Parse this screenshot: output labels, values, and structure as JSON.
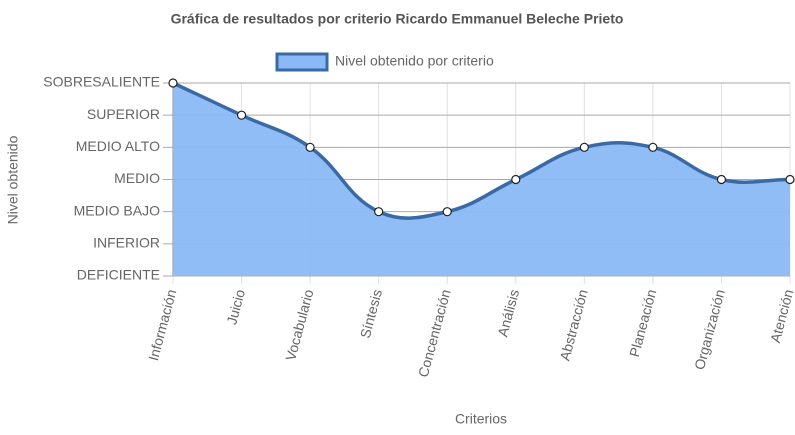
{
  "chart_data": {
    "type": "line",
    "title": "Gráfica de resultados por criterio Ricardo Emmanuel Beleche Prieto",
    "x_label": "Criterios",
    "y_label": "Nivel obtenido",
    "categories": [
      "Información",
      "Juicio",
      "Vocabulario",
      "Síntesis",
      "Concentración",
      "Análisis",
      "Abstracción",
      "Planeación",
      "Organización",
      "Atención"
    ],
    "series": [
      {
        "name": "Nivel obtenido por criterio",
        "color": "#3a6aa5",
        "fill": "#8ab9f6",
        "values": [
          6,
          5,
          4,
          2,
          2,
          3,
          4,
          4,
          3,
          3
        ]
      }
    ],
    "ylim": [
      0,
      6
    ],
    "yticks": [
      {
        "value": 0,
        "label": "DEFICIENTE"
      },
      {
        "value": 1,
        "label": "INFERIOR"
      },
      {
        "value": 2,
        "label": "MEDIO BAJO"
      },
      {
        "value": 3,
        "label": "MEDIO"
      },
      {
        "value": 4,
        "label": "MEDIO ALTO"
      },
      {
        "value": 5,
        "label": "SUPERIOR"
      },
      {
        "value": 6,
        "label": "SOBRESALIENTE"
      }
    ],
    "grid": true,
    "legend": "top"
  }
}
